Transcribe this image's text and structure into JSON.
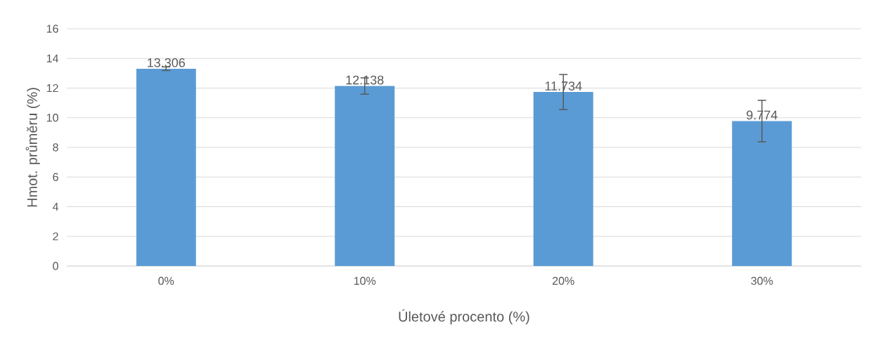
{
  "chart_data": {
    "type": "bar",
    "xlabel": "Úletové  procento (%)",
    "ylabel": "Hmot.  průměru (%)",
    "categories": [
      "0%",
      "10%",
      "20%",
      "30%"
    ],
    "values": [
      13.306,
      12.138,
      11.734,
      9.774
    ],
    "errors": [
      0.12,
      0.55,
      1.18,
      1.4
    ],
    "color": "#5b9bd5",
    "ylim": [
      0,
      16
    ],
    "yticks": [
      0,
      2,
      4,
      6,
      8,
      10,
      12,
      14,
      16
    ],
    "grid": "y",
    "data_labels": true
  }
}
